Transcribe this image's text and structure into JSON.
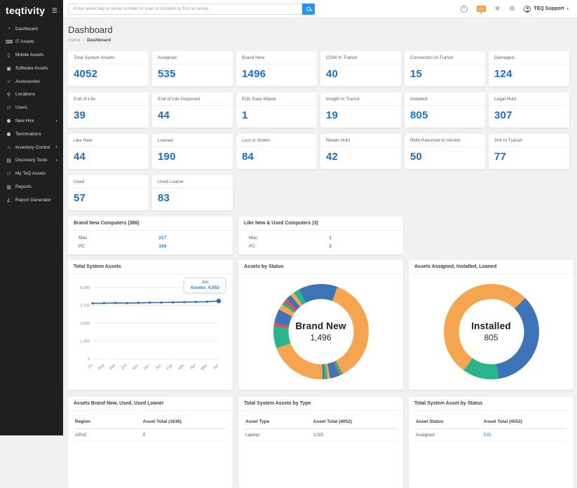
{
  "brand": {
    "logo_text": "teqtivity"
  },
  "topbar": {
    "search_placeholder": "Enter asset tag or serial number or user or location to find an asset",
    "user_menu_label": "TEQ Support"
  },
  "sidebar": {
    "items": [
      {
        "label": "Dashboard",
        "icon": "dashboard-icon",
        "glyph": "◔",
        "submenu": false
      },
      {
        "label": "IT Assets",
        "icon": "it-assets-icon",
        "glyph": "⌨",
        "submenu": false
      },
      {
        "label": "Mobile Assets",
        "icon": "mobile-assets-icon",
        "glyph": "▯",
        "submenu": false
      },
      {
        "label": "Software Assets",
        "icon": "software-assets-icon",
        "glyph": "▣",
        "submenu": false
      },
      {
        "label": "Accessories",
        "icon": "accessories-icon",
        "glyph": "∩",
        "submenu": false
      },
      {
        "label": "Locations",
        "icon": "locations-icon",
        "glyph": "⚲",
        "submenu": false
      },
      {
        "label": "Users",
        "icon": "users-icon",
        "glyph": "⚇",
        "submenu": false
      },
      {
        "label": "New Hire",
        "icon": "new-hire-icon",
        "glyph": "⚉",
        "submenu": true
      },
      {
        "label": "Terminations",
        "icon": "terminations-icon",
        "glyph": "⚈",
        "submenu": false
      },
      {
        "label": "Inventory Control",
        "icon": "inventory-control-icon",
        "glyph": "⌂",
        "submenu": true
      },
      {
        "label": "Discovery Tools",
        "icon": "discovery-tools-icon",
        "glyph": "▤",
        "submenu": true
      },
      {
        "label": "My TeQ Assets",
        "icon": "my-teq-assets-icon",
        "glyph": "⚆",
        "submenu": false
      },
      {
        "label": "Reports",
        "icon": "reports-icon",
        "glyph": "▥",
        "submenu": false
      },
      {
        "label": "Report Generator",
        "icon": "report-generator-icon",
        "glyph": "∠",
        "submenu": false
      }
    ]
  },
  "page": {
    "title": "Dashboard",
    "breadcrumb": {
      "home": "Home",
      "separator": "/",
      "current": "Dashboard"
    }
  },
  "stat_cards": [
    {
      "label": "Total System Assets",
      "value": "4052"
    },
    {
      "label": "Assigned",
      "value": "535"
    },
    {
      "label": "Brand New",
      "value": "1496"
    },
    {
      "label": "CDW In Transit",
      "value": "40"
    },
    {
      "label": "Connection In Transit",
      "value": "15"
    },
    {
      "label": "Damaged",
      "value": "124"
    },
    {
      "label": "End of Life",
      "value": "39"
    },
    {
      "label": "End of Life Disposed",
      "value": "44"
    },
    {
      "label": "EOL Data Wiped",
      "value": "1"
    },
    {
      "label": "Insight In Transit",
      "value": "19"
    },
    {
      "label": "Installed",
      "value": "805"
    },
    {
      "label": "Legal Hold",
      "value": "307"
    },
    {
      "label": "Like New",
      "value": "44"
    },
    {
      "label": "Loaned",
      "value": "190"
    },
    {
      "label": "Lost or Stolen",
      "value": "84"
    },
    {
      "label": "Retain Hold",
      "value": "42"
    },
    {
      "label": "RMA Returned to Vendor",
      "value": "50"
    },
    {
      "label": "SHI In Transit",
      "value": "77"
    },
    {
      "label": "Used",
      "value": "57"
    },
    {
      "label": "Used Loaner",
      "value": "83"
    }
  ],
  "summary_cards": [
    {
      "title": "Brand New Computers (386)",
      "rows": [
        {
          "label": "Mac",
          "value": "217"
        },
        {
          "label": "PC",
          "value": "169"
        }
      ]
    },
    {
      "title": "Like New & Used Computers (3)",
      "rows": [
        {
          "label": "Mac",
          "value": "1"
        },
        {
          "label": "PC",
          "value": "2"
        }
      ]
    }
  ],
  "chart_data": [
    {
      "type": "line",
      "title": "Total System Assets",
      "x": [
        "Jul",
        "Aug",
        "Sep",
        "Oct",
        "Nov",
        "Dec",
        "Jan",
        "Feb",
        "Mar",
        "Apr",
        "May",
        "Jun"
      ],
      "series": [
        {
          "name": "Assets",
          "values": [
            3890,
            3900,
            3915,
            3905,
            3925,
            3940,
            3945,
            3960,
            3975,
            3990,
            4005,
            4052
          ]
        }
      ],
      "ylim": [
        0,
        5000
      ],
      "yticks": [
        0,
        1250,
        2500,
        3750,
        5000
      ],
      "ytick_labels": [
        "0",
        "1,250",
        "2,500",
        "3,750",
        "5,000"
      ],
      "grid": true,
      "line_color": "#2c6cb0",
      "tooltip": {
        "title": "Jun",
        "text": "Assets: 4,052"
      }
    },
    {
      "type": "donut",
      "title": "Assets by Status",
      "center_label": "Brand New",
      "center_value": "1,496",
      "start_angle": -27.5,
      "total": 4052,
      "segments": [
        {
          "label": "Assigned",
          "value": 535,
          "color": "#3d74b8"
        },
        {
          "label": "Brand New",
          "value": 1496,
          "color": "#f5a54f"
        },
        {
          "label": "CDW In Transit",
          "value": 40,
          "color": "#29b48c"
        },
        {
          "label": "Connection In Transit",
          "value": 15,
          "color": "#e8495f"
        },
        {
          "label": "Damaged",
          "value": 124,
          "color": "#3d74b8"
        },
        {
          "label": "End of Life",
          "value": 39,
          "color": "#f5a54f"
        },
        {
          "label": "End of Life Disposed",
          "value": 44,
          "color": "#29b48c"
        },
        {
          "label": "EOL Data Wiped",
          "value": 1,
          "color": "#e8495f"
        },
        {
          "label": "Insight In Transit",
          "value": 19,
          "color": "#3d74b8"
        },
        {
          "label": "Installed",
          "value": 805,
          "color": "#f5a54f"
        },
        {
          "label": "Legal Hold",
          "value": 307,
          "color": "#29b48c"
        },
        {
          "label": "Like New",
          "value": 44,
          "color": "#e8495f"
        },
        {
          "label": "Loaned",
          "value": 190,
          "color": "#3d74b8"
        },
        {
          "label": "Lost or Stolen",
          "value": 84,
          "color": "#f5a54f"
        },
        {
          "label": "Retain Hold",
          "value": 42,
          "color": "#29b48c"
        },
        {
          "label": "RMA Returned to Vendor",
          "value": 50,
          "color": "#e8495f"
        },
        {
          "label": "SHI In Transit",
          "value": 77,
          "color": "#3d74b8"
        },
        {
          "label": "Used",
          "value": 57,
          "color": "#f5a54f"
        },
        {
          "label": "Used Loaner",
          "value": 83,
          "color": "#29b48c"
        }
      ]
    },
    {
      "type": "donut",
      "title": "Assets Assigned, Installed, Loaned",
      "center_label": "Installed",
      "center_value": "805",
      "start_angle": 45,
      "total": 1530,
      "segments": [
        {
          "label": "Assigned",
          "value": 535,
          "color": "#3d74b8"
        },
        {
          "label": "Loaned",
          "value": 190,
          "color": "#29b48c"
        },
        {
          "label": "Installed",
          "value": 805,
          "color": "#f5a54f"
        }
      ]
    }
  ],
  "table_cards": [
    {
      "title": "Assets Brand New, Used, Used Loaner",
      "columns": [
        "Region",
        "Asset Total (1636)"
      ],
      "rows": [
        [
          "APAC",
          "0"
        ]
      ],
      "value_is_link": false
    },
    {
      "title": "Total System Assets by Type",
      "columns": [
        "Asset Type",
        "Asset Total (4052)"
      ],
      "rows": [
        [
          "Laptop",
          "1295"
        ]
      ],
      "value_is_link": true
    },
    {
      "title": "Total System Asset by Status",
      "columns": [
        "Asset Status",
        "Asset Total (4052)"
      ],
      "rows": [
        [
          "Assigned",
          "535"
        ]
      ],
      "value_is_link": true
    }
  ],
  "colors": {
    "accent_blue": "#1a6fc4",
    "link_blue": "#2f7ad1",
    "search_button_blue": "#2196f3",
    "chat_badge_orange": "#f29b38",
    "sidebar_bg": "#1e1f21",
    "donut_orange": "#f5a54f",
    "donut_blue": "#3d74b8",
    "donut_teal": "#29b48c",
    "donut_red": "#e8495f"
  }
}
